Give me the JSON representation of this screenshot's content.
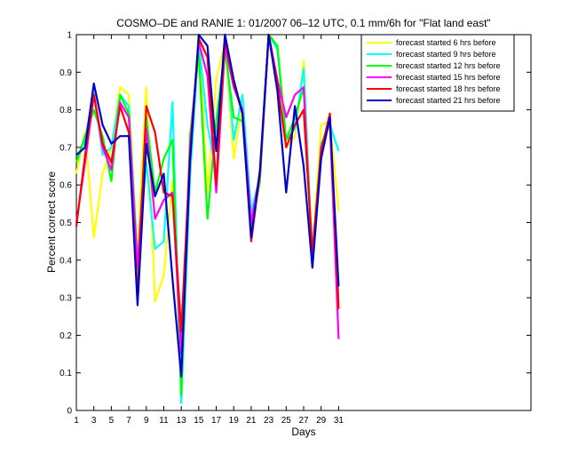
{
  "chart_data": {
    "type": "line",
    "title": "COSMO–DE and RANIE 1: 01/2007 06–12 UTC, 0.1 mm/6h for \"Flat land east\"",
    "xlabel": "Days",
    "ylabel": "Percent correct score",
    "xlim": [
      1,
      53
    ],
    "ylim": [
      0,
      1
    ],
    "xticks": [
      1,
      3,
      5,
      7,
      9,
      11,
      13,
      15,
      17,
      19,
      21,
      23,
      25,
      27,
      29,
      31
    ],
    "yticks": [
      0,
      0.1,
      0.2,
      0.3,
      0.4,
      0.5,
      0.6,
      0.7,
      0.8,
      0.9,
      1
    ],
    "ytick_labels": [
      "0",
      "0.1",
      "0.2",
      "0.3",
      "0.4",
      "0.5",
      "0.6",
      "0.7",
      "0.8",
      "0.9",
      "1"
    ],
    "grid": false,
    "legend_position": "top-right",
    "x": [
      1,
      2,
      3,
      4,
      5,
      6,
      7,
      8,
      9,
      10,
      11,
      12,
      13,
      14,
      15,
      16,
      17,
      18,
      19,
      20,
      21,
      22,
      23,
      24,
      25,
      26,
      27,
      28,
      29,
      30,
      31
    ],
    "series": [
      {
        "name": "forecast started 6 hrs before",
        "color": "#ffff00",
        "values": [
          0.63,
          0.74,
          0.46,
          0.63,
          0.7,
          0.86,
          0.84,
          0.42,
          0.86,
          0.29,
          0.36,
          0.61,
          0.17,
          0.62,
          1.0,
          0.58,
          0.88,
          0.98,
          0.67,
          0.82,
          0.46,
          0.63,
          1.0,
          0.97,
          0.7,
          0.73,
          0.93,
          0.41,
          0.76,
          0.77,
          0.53
        ]
      },
      {
        "name": "forecast started 9 hrs before",
        "color": "#00ffff",
        "values": [
          0.66,
          0.72,
          0.85,
          0.68,
          0.7,
          0.84,
          0.81,
          0.4,
          0.66,
          0.43,
          0.45,
          0.82,
          0.02,
          0.62,
          0.98,
          0.76,
          0.63,
          0.99,
          0.72,
          0.84,
          0.53,
          0.62,
          1.0,
          0.96,
          0.72,
          0.75,
          0.91,
          0.4,
          0.71,
          0.76,
          0.69
        ]
      },
      {
        "name": "forecast started 12 hrs before",
        "color": "#00ff00",
        "values": [
          0.66,
          0.73,
          0.8,
          0.73,
          0.61,
          0.84,
          0.79,
          0.36,
          0.78,
          0.58,
          0.67,
          0.72,
          0.04,
          0.73,
          0.95,
          0.51,
          0.77,
          0.96,
          0.78,
          0.77,
          0.48,
          0.61,
          1.0,
          0.97,
          0.72,
          0.78,
          0.86,
          0.4,
          0.7,
          0.78,
          0.28
        ]
      },
      {
        "name": "forecast started 15 hrs before",
        "color": "#ff00ff",
        "values": [
          0.5,
          0.66,
          0.84,
          0.7,
          0.64,
          0.82,
          0.78,
          0.38,
          0.75,
          0.51,
          0.56,
          0.58,
          0.15,
          0.7,
          0.98,
          0.89,
          0.58,
          0.97,
          0.86,
          0.8,
          0.5,
          0.63,
          1.0,
          0.88,
          0.78,
          0.84,
          0.86,
          0.38,
          0.7,
          0.77,
          0.19
        ]
      },
      {
        "name": "forecast started 18 hrs before",
        "color": "#ff0000",
        "values": [
          0.49,
          0.68,
          0.84,
          0.71,
          0.66,
          0.81,
          0.74,
          0.3,
          0.81,
          0.74,
          0.58,
          0.57,
          0.21,
          0.68,
          0.99,
          0.94,
          0.6,
          0.99,
          0.87,
          0.79,
          0.45,
          0.63,
          1.0,
          0.87,
          0.7,
          0.76,
          0.8,
          0.42,
          0.69,
          0.79,
          0.27
        ]
      },
      {
        "name": "forecast started 21 hrs before",
        "color": "#0000cc",
        "values": [
          0.68,
          0.7,
          0.87,
          0.76,
          0.71,
          0.73,
          0.73,
          0.28,
          0.71,
          0.57,
          0.63,
          0.35,
          0.09,
          0.66,
          1.0,
          0.97,
          0.69,
          1.0,
          0.88,
          0.79,
          0.46,
          0.64,
          1.0,
          0.85,
          0.58,
          0.81,
          0.65,
          0.38,
          0.67,
          0.78,
          0.33
        ]
      }
    ]
  }
}
